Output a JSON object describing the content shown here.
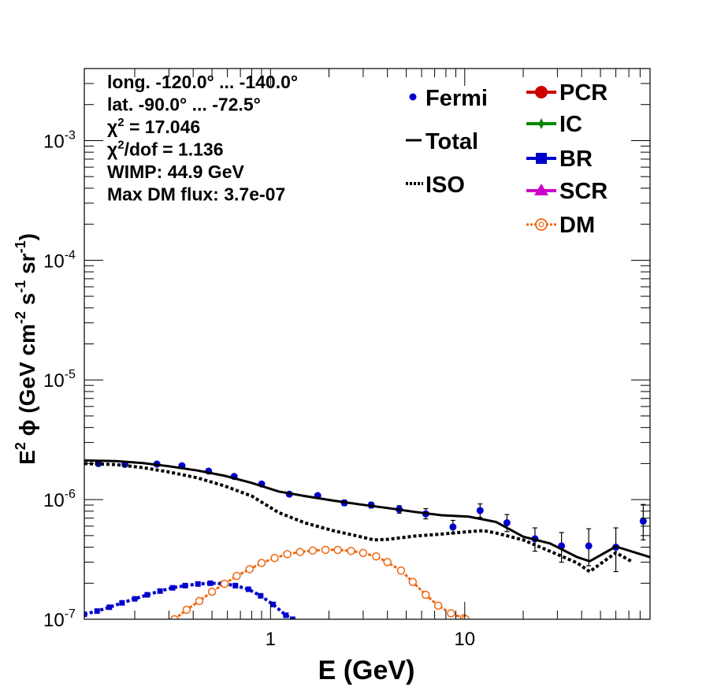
{
  "chart_data": {
    "type": "line",
    "xscale": "log",
    "yscale": "log",
    "xlim": [
      0.11,
      90
    ],
    "ylim": [
      1e-07,
      0.004
    ],
    "xlabel": "E (GeV)",
    "ylabel": {
      "a": "E",
      "b": "2",
      "c": " ϕ (GeV cm",
      "d": "-2",
      "e": " s",
      "f": "-1",
      "g": " sr",
      "h": "-1",
      "i": ")"
    },
    "x_ticks": [
      {
        "value": 1,
        "label": "1"
      },
      {
        "value": 10,
        "label": "10"
      }
    ],
    "y_ticks": [
      {
        "value": 1e-07,
        "base": "10",
        "exp": "-7"
      },
      {
        "value": 1e-06,
        "base": "10",
        "exp": "-6"
      },
      {
        "value": 1e-05,
        "base": "10",
        "exp": "-5"
      },
      {
        "value": 0.0001,
        "base": "10",
        "exp": "-4"
      },
      {
        "value": 0.001,
        "base": "10",
        "exp": "-3"
      }
    ],
    "info": [
      {
        "pre": "",
        "sup": "",
        "post": "long. -120.0° ... -140.0°"
      },
      {
        "pre": "",
        "sup": "",
        "post": "lat. -90.0° ... -72.5°"
      },
      {
        "pre": "χ",
        "sup": "2",
        "post": " = 17.046"
      },
      {
        "pre": "χ",
        "sup": "2",
        "post": "/dof = 1.136"
      },
      {
        "pre": "",
        "sup": "",
        "post": "WIMP: 44.9 GeV"
      },
      {
        "pre": "",
        "sup": "",
        "post": "Max DM flux: 3.7e-07"
      }
    ],
    "legend_left": [
      {
        "name": "Fermi",
        "style": "dot",
        "color": "#0000cc"
      },
      {
        "name": "Total",
        "style": "solid",
        "color": "#000000"
      },
      {
        "name": "ISO",
        "style": "dashed",
        "color": "#000000"
      }
    ],
    "legend_right": [
      {
        "name": "PCR",
        "style": "circle",
        "color": "#cc0000"
      },
      {
        "name": "IC",
        "style": "star",
        "color": "#008800"
      },
      {
        "name": "BR",
        "style": "square",
        "color": "#0000cc"
      },
      {
        "name": "SCR",
        "style": "triangle",
        "color": "#cc00cc"
      },
      {
        "name": "DM",
        "style": "opencircle",
        "color": "#ee6611"
      }
    ],
    "series": [
      {
        "name": "Fermi",
        "kind": "points",
        "color": "#0000cc",
        "points": [
          {
            "x": 0.13,
            "y": 2e-06,
            "lo": 1.95e-06,
            "hi": 2.05e-06
          },
          {
            "x": 0.178,
            "y": 1.97e-06,
            "lo": 1.92e-06,
            "hi": 2.02e-06
          },
          {
            "x": 0.26,
            "y": 1.98e-06,
            "lo": 1.93e-06,
            "hi": 2.03e-06
          },
          {
            "x": 0.35,
            "y": 1.92e-06,
            "lo": 1.87e-06,
            "hi": 1.97e-06
          },
          {
            "x": 0.48,
            "y": 1.73e-06,
            "lo": 1.68e-06,
            "hi": 1.78e-06
          },
          {
            "x": 0.65,
            "y": 1.56e-06,
            "lo": 1.51e-06,
            "hi": 1.61e-06
          },
          {
            "x": 0.9,
            "y": 1.35e-06,
            "lo": 1.3e-06,
            "hi": 1.4e-06
          },
          {
            "x": 1.25,
            "y": 1.11e-06,
            "lo": 1.07e-06,
            "hi": 1.15e-06
          },
          {
            "x": 1.75,
            "y": 1.08e-06,
            "lo": 1.04e-06,
            "hi": 1.12e-06
          },
          {
            "x": 2.4,
            "y": 9.4e-07,
            "lo": 8.9e-07,
            "hi": 9.9e-07
          },
          {
            "x": 3.3,
            "y": 9e-07,
            "lo": 8.5e-07,
            "hi": 9.5e-07
          },
          {
            "x": 4.6,
            "y": 8.3e-07,
            "lo": 7.7e-07,
            "hi": 8.9e-07
          },
          {
            "x": 6.3,
            "y": 7.6e-07,
            "lo": 6.9e-07,
            "hi": 8.4e-07
          },
          {
            "x": 8.7,
            "y": 5.9e-07,
            "lo": 5.2e-07,
            "hi": 6.7e-07
          },
          {
            "x": 12,
            "y": 8.1e-07,
            "lo": 7.1e-07,
            "hi": 9.2e-07
          },
          {
            "x": 16.5,
            "y": 6.4e-07,
            "lo": 5.4e-07,
            "hi": 7.5e-07
          },
          {
            "x": 23,
            "y": 4.7e-07,
            "lo": 3.7e-07,
            "hi": 5.8e-07
          },
          {
            "x": 31.5,
            "y": 4.1e-07,
            "lo": 3e-07,
            "hi": 5.3e-07
          },
          {
            "x": 43.5,
            "y": 4.1e-07,
            "lo": 2.8e-07,
            "hi": 5.7e-07
          },
          {
            "x": 60,
            "y": 4e-07,
            "lo": 2.5e-07,
            "hi": 5.8e-07
          },
          {
            "x": 83,
            "y": 6.6e-07,
            "lo": 4.6e-07,
            "hi": 9.1e-07
          }
        ]
      },
      {
        "name": "Total",
        "kind": "line",
        "color": "#000000",
        "x": [
          0.11,
          0.16,
          0.22,
          0.3,
          0.42,
          0.58,
          0.8,
          1.1,
          1.5,
          2.1,
          2.9,
          4.0,
          5.5,
          7.6,
          10.5,
          14.5,
          20,
          27.5,
          38,
          44,
          60,
          90
        ],
        "y": [
          2.12e-06,
          2.1e-06,
          2.02e-06,
          1.9e-06,
          1.75e-06,
          1.58e-06,
          1.38e-06,
          1.17e-06,
          1.07e-06,
          9.8e-07,
          9.1e-07,
          8.5e-07,
          7.9e-07,
          7.4e-07,
          7.2e-07,
          6.5e-07,
          4.9e-07,
          4.3e-07,
          3.3e-07,
          3.05e-07,
          4.05e-07,
          3.3e-07
        ]
      },
      {
        "name": "ISO",
        "kind": "dashed",
        "color": "#000000",
        "x": [
          0.11,
          0.16,
          0.22,
          0.3,
          0.42,
          0.58,
          0.8,
          1.1,
          1.5,
          2.1,
          2.9,
          3.4,
          4.0,
          5.5,
          7.6,
          10.5,
          12.5,
          14.5,
          20,
          27.5,
          38,
          44,
          60,
          72
        ],
        "y": [
          2e-06,
          1.96e-06,
          1.85e-06,
          1.7e-06,
          1.52e-06,
          1.3e-06,
          1.07e-06,
          7.8e-07,
          6.4e-07,
          5.5e-07,
          4.9e-07,
          4.6e-07,
          4.65e-07,
          4.95e-07,
          5.15e-07,
          5.4e-07,
          5.5e-07,
          5.25e-07,
          4.6e-07,
          3.7e-07,
          2.95e-07,
          2.5e-07,
          3.6e-07,
          3.05e-07
        ]
      },
      {
        "name": "BR",
        "kind": "squares",
        "color": "#0000cc",
        "x": [
          0.11,
          0.128,
          0.148,
          0.172,
          0.2,
          0.232,
          0.27,
          0.313,
          0.364,
          0.423,
          0.49,
          0.57,
          0.66,
          0.77,
          0.89,
          1.03,
          1.2,
          1.3
        ],
        "y": [
          1.1e-07,
          1.17e-07,
          1.26e-07,
          1.37e-07,
          1.48e-07,
          1.6e-07,
          1.72e-07,
          1.83e-07,
          1.91e-07,
          1.97e-07,
          2e-07,
          1.98e-07,
          1.91e-07,
          1.78e-07,
          1.57e-07,
          1.33e-07,
          1.08e-07,
          1e-07
        ]
      },
      {
        "name": "DM",
        "kind": "opencircles",
        "color": "#ee6611",
        "x": [
          0.32,
          0.37,
          0.43,
          0.5,
          0.58,
          0.67,
          0.78,
          0.9,
          1.05,
          1.22,
          1.42,
          1.65,
          1.92,
          2.22,
          2.6,
          3.0,
          3.5,
          4.0,
          4.7,
          5.4,
          6.3,
          7.3,
          8.5,
          9.9,
          10.1
        ],
        "y": [
          1e-07,
          1.2e-07,
          1.42e-07,
          1.7e-07,
          1.98e-07,
          2.3e-07,
          2.62e-07,
          2.95e-07,
          3.25e-07,
          3.5e-07,
          3.65e-07,
          3.75e-07,
          3.8e-07,
          3.8e-07,
          3.72e-07,
          3.58e-07,
          3.35e-07,
          3e-07,
          2.55e-07,
          2.05e-07,
          1.6e-07,
          1.3e-07,
          1.12e-07,
          1.02e-07,
          1e-07
        ]
      }
    ]
  }
}
